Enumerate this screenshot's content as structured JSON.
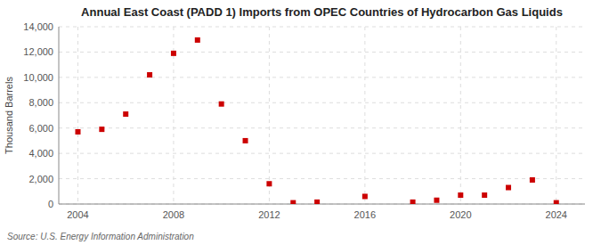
{
  "chart_data": {
    "type": "scatter",
    "title": "Annual East Coast (PADD 1) Imports from OPEC Countries of Hydrocarbon Gas Liquids",
    "ylabel": "Thousand Barrels",
    "source": "Source: U.S. Energy Information Administration",
    "x": [
      2004,
      2005,
      2006,
      2007,
      2008,
      2009,
      2010,
      2011,
      2012,
      2013,
      2014,
      2016,
      2018,
      2019,
      2020,
      2021,
      2022,
      2023,
      2024
    ],
    "values": [
      5700,
      5900,
      7100,
      10200,
      11900,
      12950,
      7900,
      5000,
      1600,
      100,
      150,
      600,
      150,
      300,
      700,
      700,
      1300,
      1900,
      100
    ],
    "color": "#cc0000",
    "marker": "square",
    "xlim": [
      2003.2,
      2025.2
    ],
    "ylim": [
      0,
      14000
    ],
    "xticks": [
      2004,
      2008,
      2012,
      2016,
      2020,
      2024
    ],
    "yticks": [
      0,
      {
        "value": 2000,
        "label": "2,000"
      },
      {
        "value": 4000,
        "label": "4,000"
      },
      {
        "value": 6000,
        "label": "6,000"
      },
      {
        "value": 8000,
        "label": "8,000"
      },
      {
        "value": 10000,
        "label": "10,000"
      },
      {
        "value": 12000,
        "label": "12,000"
      },
      {
        "value": 14000,
        "label": "14,000"
      }
    ],
    "grid": true
  }
}
